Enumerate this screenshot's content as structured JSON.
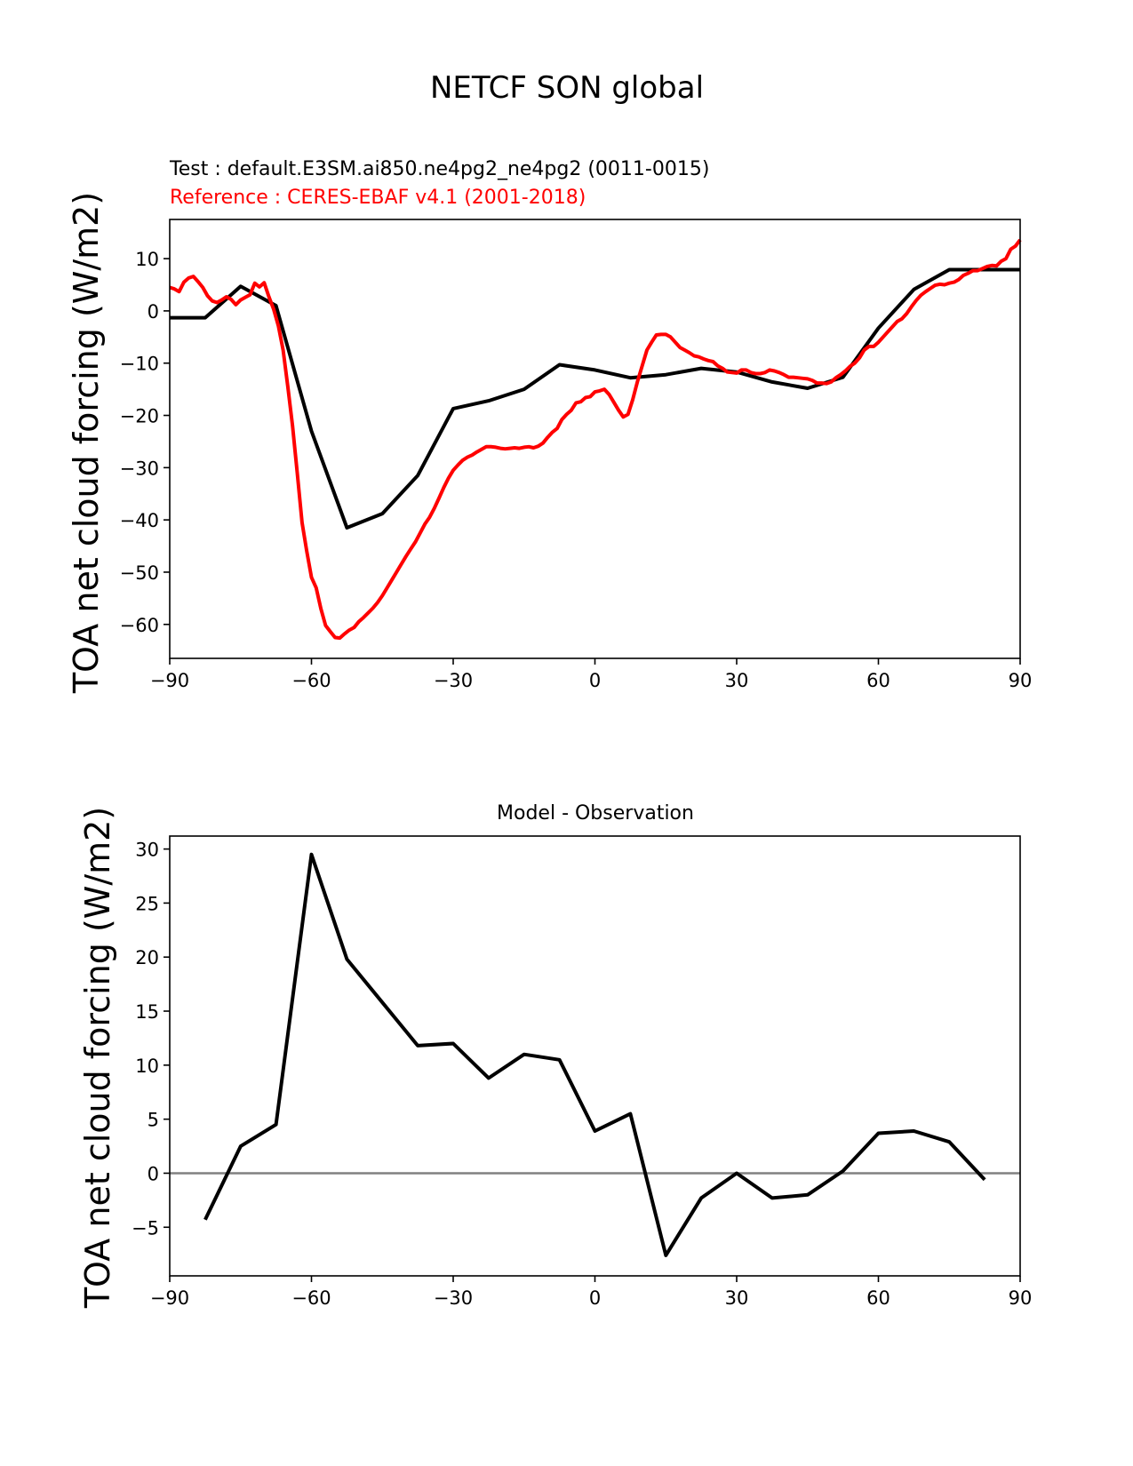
{
  "figure": {
    "title": "NETCF SON global"
  },
  "chart_data": [
    {
      "type": "line",
      "test_label": "Test : default.E3SM.ai850.ne4pg2_ne4pg2 (0011-0015)",
      "reference_label": "Reference : CERES-EBAF v4.1 (2001-2018)",
      "xlabel": "",
      "ylabel": "TOA net cloud forcing (W/m2)",
      "xlim": [
        -90,
        90
      ],
      "ylim": [
        -66.5,
        17.5
      ],
      "xticks": [
        -90,
        -60,
        -30,
        0,
        30,
        60,
        90
      ],
      "yticks": [
        -60,
        -50,
        -40,
        -30,
        -20,
        -10,
        0,
        10
      ],
      "series": [
        {
          "name": "Test",
          "color": "#000000",
          "x": [
            -90,
            -82.5,
            -75,
            -67.5,
            -60,
            -52.5,
            -45,
            -37.5,
            -30,
            -22.5,
            -15,
            -7.5,
            0,
            7.5,
            15,
            22.5,
            30,
            37.5,
            45,
            52.5,
            60,
            67.5,
            75,
            82.5,
            90
          ],
          "y": [
            -1.3,
            -1.3,
            4.7,
            1.0,
            -23.0,
            -41.5,
            -38.8,
            -31.5,
            -18.7,
            -17.2,
            -15.0,
            -10.3,
            -11.3,
            -12.8,
            -12.2,
            -11.0,
            -11.7,
            -13.6,
            -14.8,
            -12.7,
            -3.3,
            4.1,
            7.9,
            7.9,
            7.9
          ]
        },
        {
          "name": "Reference",
          "color": "#ff0000",
          "x": [
            -90,
            -89,
            -88,
            -87,
            -86,
            -85,
            -84,
            -83,
            -82,
            -81,
            -80,
            -79,
            -78,
            -77,
            -76,
            -75,
            -74,
            -73,
            -72,
            -71,
            -70,
            -69,
            -68,
            -67,
            -66,
            -65,
            -64,
            -63,
            -62,
            -61,
            -60,
            -59,
            -58,
            -57,
            -56,
            -55,
            -54,
            -53,
            -52,
            -51,
            -50,
            -49,
            -48,
            -47,
            -46,
            -45,
            -44,
            -43,
            -42,
            -41,
            -40,
            -39,
            -38,
            -37,
            -36,
            -35,
            -34,
            -33,
            -32,
            -31,
            -30,
            -29,
            -28,
            -27,
            -26,
            -25,
            -24,
            -23,
            -22,
            -21,
            -20,
            -19,
            -18,
            -17,
            -16,
            -15,
            -14,
            -13,
            -12,
            -11,
            -10,
            -9,
            -8,
            -7,
            -6,
            -5,
            -4,
            -3,
            -2,
            -1,
            0,
            1,
            2,
            3,
            4,
            5,
            6,
            7,
            8,
            9,
            10,
            11,
            12,
            13,
            14,
            15,
            16,
            17,
            18,
            19,
            20,
            21,
            22,
            23,
            24,
            25,
            26,
            27,
            28,
            29,
            30,
            31,
            32,
            33,
            34,
            35,
            36,
            37,
            38,
            39,
            40,
            41,
            42,
            43,
            44,
            45,
            46,
            47,
            48,
            49,
            50,
            51,
            52,
            53,
            54,
            55,
            56,
            57,
            58,
            59,
            60,
            61,
            62,
            63,
            64,
            65,
            66,
            67,
            68,
            69,
            70,
            71,
            72,
            73,
            74,
            75,
            76,
            77,
            78,
            79,
            80,
            81,
            82,
            83,
            84,
            85,
            86,
            87,
            88,
            89,
            90
          ],
          "y": [
            4.5,
            4.2,
            3.7,
            5.5,
            6.3,
            6.6,
            5.6,
            4.5,
            2.9,
            1.9,
            1.6,
            2.1,
            2.7,
            2.2,
            1.2,
            2.1,
            2.6,
            3.1,
            5.3,
            4.6,
            5.4,
            2.7,
            0.3,
            -2.9,
            -7.5,
            -14.5,
            -22.0,
            -31.0,
            -40.5,
            -46.0,
            -51.0,
            -53.0,
            -57.0,
            -60.2,
            -61.4,
            -62.5,
            -62.6,
            -61.8,
            -61.1,
            -60.6,
            -59.5,
            -58.7,
            -57.8,
            -56.9,
            -55.8,
            -54.5,
            -53.0,
            -51.5,
            -50.0,
            -48.5,
            -47.0,
            -45.6,
            -44.2,
            -42.5,
            -40.8,
            -39.5,
            -37.8,
            -35.8,
            -33.8,
            -32.0,
            -30.5,
            -29.5,
            -28.6,
            -28.0,
            -27.6,
            -27.0,
            -26.5,
            -26.0,
            -26.0,
            -26.1,
            -26.3,
            -26.4,
            -26.3,
            -26.2,
            -26.3,
            -26.1,
            -26.0,
            -26.2,
            -25.9,
            -25.3,
            -24.2,
            -23.2,
            -22.5,
            -20.8,
            -19.8,
            -19.0,
            -17.6,
            -17.4,
            -16.6,
            -16.4,
            -15.5,
            -15.3,
            -15.0,
            -16.0,
            -17.5,
            -19.0,
            -20.3,
            -19.8,
            -17.0,
            -13.5,
            -10.5,
            -7.5,
            -6.0,
            -4.6,
            -4.5,
            -4.5,
            -5.0,
            -6.0,
            -7.0,
            -7.5,
            -8.0,
            -8.6,
            -8.8,
            -9.2,
            -9.5,
            -9.7,
            -10.5,
            -11.0,
            -11.7,
            -11.8,
            -11.9,
            -11.3,
            -11.3,
            -11.8,
            -12.0,
            -12.0,
            -11.8,
            -11.3,
            -11.5,
            -11.8,
            -12.2,
            -12.7,
            -12.7,
            -12.8,
            -12.9,
            -13.0,
            -13.3,
            -13.8,
            -13.8,
            -13.9,
            -13.6,
            -12.8,
            -12.2,
            -11.5,
            -10.6,
            -10.0,
            -9.0,
            -7.5,
            -6.8,
            -6.8,
            -6.0,
            -5.0,
            -4.0,
            -3.0,
            -2.0,
            -1.5,
            -0.5,
            0.8,
            2.0,
            3.0,
            3.7,
            4.3,
            4.9,
            5.1,
            5.0,
            5.3,
            5.5,
            6.0,
            6.8,
            7.2,
            7.7,
            7.7,
            8.1,
            8.5,
            8.7,
            8.6,
            9.5,
            10.0,
            11.8,
            12.4,
            13.6
          ]
        }
      ]
    },
    {
      "type": "line",
      "title": "Model - Observation",
      "xlabel": "",
      "ylabel": "TOA net cloud forcing (W/m2)",
      "xlim": [
        -90,
        90
      ],
      "ylim": [
        -9.5,
        31.2
      ],
      "xticks": [
        -90,
        -60,
        -30,
        0,
        30,
        60,
        90
      ],
      "yticks": [
        -5,
        0,
        5,
        10,
        15,
        20,
        25,
        30
      ],
      "zero_line": {
        "y": 0,
        "color": "#808080"
      },
      "series": [
        {
          "name": "Model - Observation",
          "color": "#000000",
          "x": [
            -82.5,
            -75,
            -67.5,
            -60,
            -52.5,
            -45,
            -37.5,
            -30,
            -22.5,
            -15,
            -7.5,
            0,
            7.5,
            15,
            22.5,
            30,
            37.5,
            45,
            52.5,
            60,
            67.5,
            75,
            82.5
          ],
          "y": [
            -4.3,
            2.5,
            4.5,
            29.5,
            19.8,
            15.8,
            11.8,
            12.0,
            8.8,
            11.0,
            10.5,
            3.9,
            5.5,
            -7.6,
            -2.3,
            0.0,
            -2.3,
            -2.0,
            0.2,
            3.7,
            3.9,
            2.9,
            -0.6
          ]
        }
      ]
    }
  ]
}
